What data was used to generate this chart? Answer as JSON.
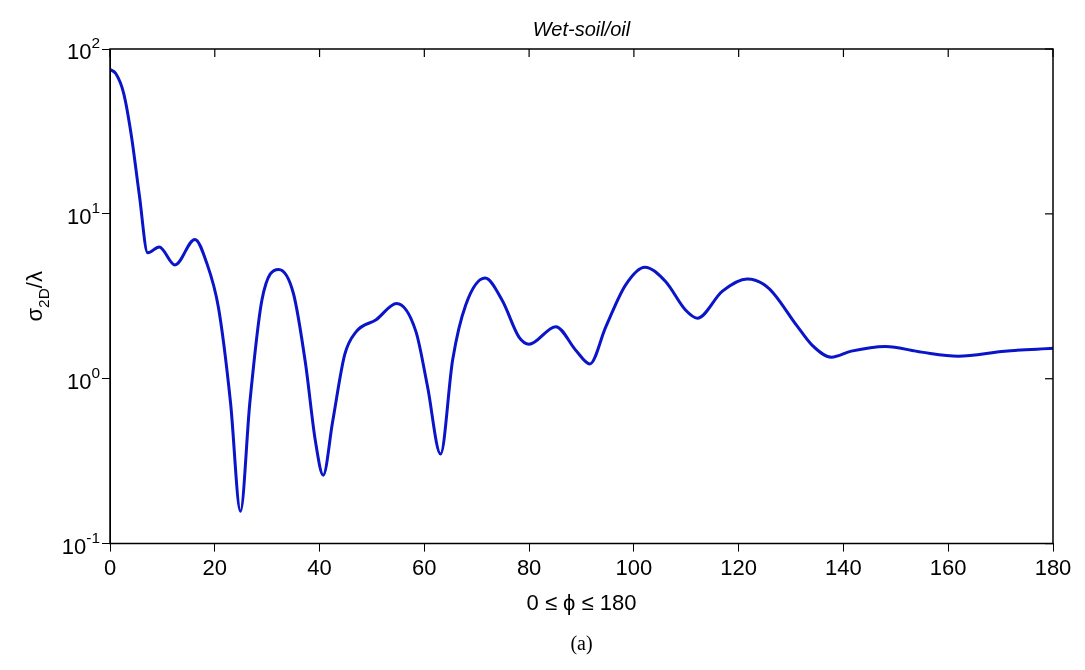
{
  "chart_data": {
    "type": "line",
    "title": "Wet-soil/oil",
    "xlabel": "0 ≤ ϕ ≤ 180",
    "ylabel": "σ$_{2D}$/λ",
    "annotations": [
      "(a)"
    ],
    "log": "y",
    "grid": false,
    "legend": false,
    "marker": "none",
    "line_style": "solid",
    "xlim": [
      0,
      180
    ],
    "xticks": [
      0,
      20,
      40,
      60,
      80,
      100,
      120,
      140,
      160,
      180
    ],
    "ylim": [
      0.1,
      100
    ],
    "yticks": [
      {
        "value": 0.1,
        "label": "10$^{-1}$"
      },
      {
        "value": 1,
        "label": "10$^{0}$"
      },
      {
        "value": 10,
        "label": "10$^{1}$"
      },
      {
        "value": 100,
        "label": "10$^{2}$"
      }
    ],
    "series": [
      {
        "color": "#0a14c8",
        "x": [
          0,
          1.1,
          2.6,
          4.1,
          5.6,
          7.2,
          9.4,
          12.4,
          16.2,
          18.4,
          20.7,
          23,
          24.9,
          26.7,
          29,
          32.2,
          35,
          37.3,
          39.2,
          40.7,
          42.5,
          44.8,
          47,
          50.8,
          54.7,
          58.4,
          60.6,
          63.1,
          65.4,
          67.9,
          71.6,
          74.9,
          78.1,
          80,
          85.1,
          88.9,
          91.6,
          94.6,
          98.4,
          102.1,
          106,
          109.9,
          112.1,
          116.9,
          121.6,
          125.7,
          131.1,
          134,
          137.7,
          141.5,
          148,
          154.9,
          161.9,
          170.8,
          180
        ],
        "values": [
          75,
          71,
          54,
          29.5,
          13,
          5.8,
          6.3,
          4.9,
          7,
          5.1,
          2.7,
          0.72,
          0.157,
          0.72,
          3,
          4.6,
          3.3,
          1.25,
          0.42,
          0.26,
          0.55,
          1.4,
          1.93,
          2.28,
          2.86,
          1.93,
          0.9,
          0.35,
          1.3,
          2.8,
          4.08,
          2.97,
          1.78,
          1.62,
          2.07,
          1.49,
          1.23,
          2.05,
          3.7,
          4.75,
          3.9,
          2.6,
          2.33,
          3.4,
          4.03,
          3.55,
          2.1,
          1.6,
          1.35,
          1.47,
          1.57,
          1.45,
          1.37,
          1.47,
          1.53
        ]
      }
    ]
  }
}
